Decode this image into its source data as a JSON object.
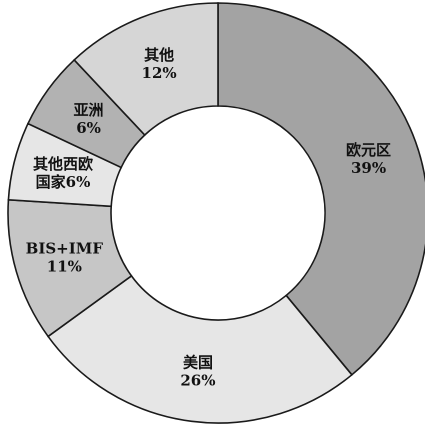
{
  "chart_data": {
    "type": "pie",
    "donut": true,
    "title": "",
    "categories": [
      "欧元区",
      "美国",
      "BIS+IMF",
      "其他西欧国家",
      "亚洲",
      "其他"
    ],
    "values": [
      39,
      26,
      11,
      6,
      6,
      12
    ],
    "unit": "%",
    "legend": "none",
    "slices": [
      {
        "label_lines": [
          "欧元区",
          "39%"
        ],
        "color": "#a3a3a3"
      },
      {
        "label_lines": [
          "美国",
          "26%"
        ],
        "color": "#e6e6e6"
      },
      {
        "label_lines": [
          "BIS+IMF",
          "11%"
        ],
        "color": "#c6c6c6"
      },
      {
        "label_lines": [
          "其他西欧",
          "国家6%"
        ],
        "color": "#e6e6e6"
      },
      {
        "label_lines": [
          "亚洲",
          "6%"
        ],
        "color": "#b2b2b2"
      },
      {
        "label_lines": [
          "其他",
          "12%"
        ],
        "color": "#d6d6d6"
      }
    ]
  }
}
